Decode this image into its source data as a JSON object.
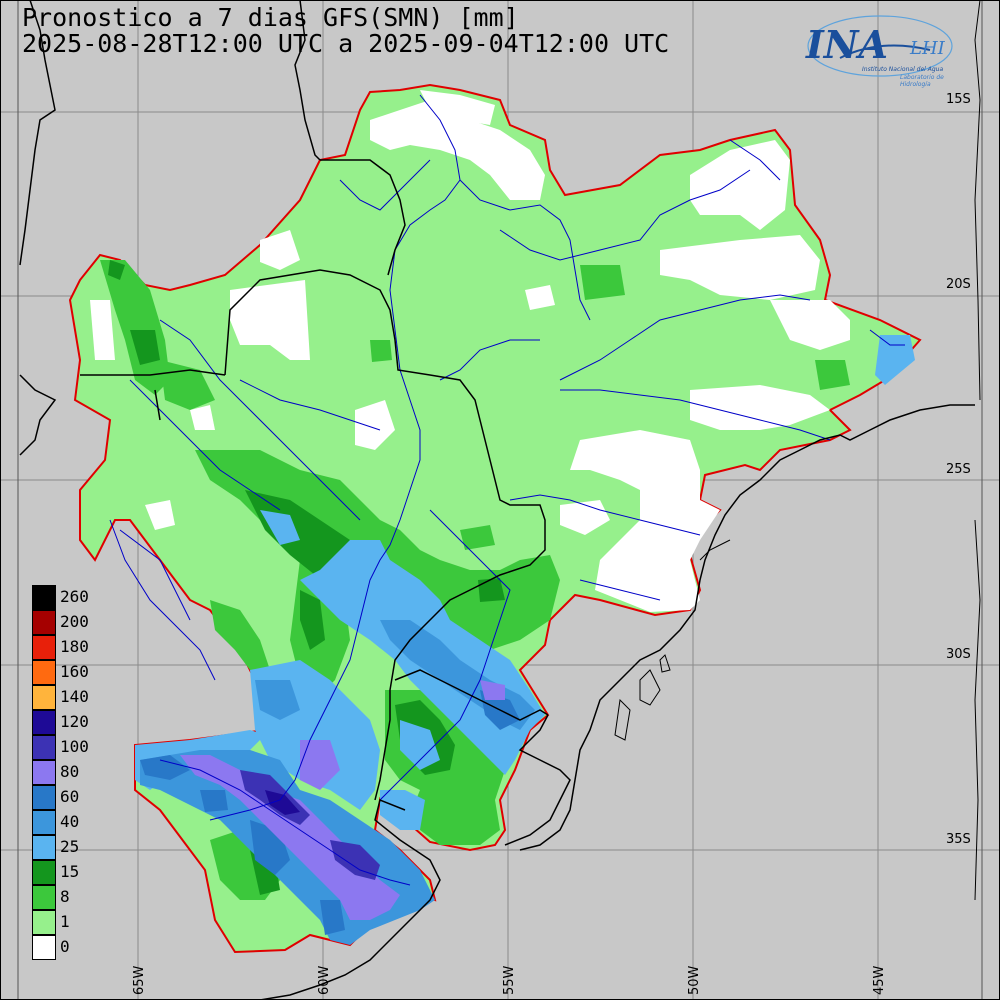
{
  "title": {
    "line1": "Pronostico a 7 dias GFS(SMN) [mm]",
    "line2": "2025-08-28T12:00 UTC a 2025-09-04T12:00 UTC"
  },
  "logo": {
    "ina": "INA",
    "lhi": "LHI",
    "sub1": "Instituto Nacional del Agua",
    "sub2": "Laboratorio de Hidrología"
  },
  "lat_labels": [
    "15S",
    "20S",
    "25S",
    "30S",
    "35S"
  ],
  "lon_labels": [
    "65W",
    "60W",
    "55W",
    "50W",
    "45W"
  ],
  "legend": [
    {
      "label": "260",
      "color": "#000000"
    },
    {
      "label": "200",
      "color": "#a50000"
    },
    {
      "label": "180",
      "color": "#e8200a"
    },
    {
      "label": "160",
      "color": "#ff6a10"
    },
    {
      "label": "140",
      "color": "#ffb43c"
    },
    {
      "label": "120",
      "color": "#1e0a96"
    },
    {
      "label": "100",
      "color": "#3c32b4"
    },
    {
      "label": "80",
      "color": "#8c78f0"
    },
    {
      "label": "60",
      "color": "#2878c8"
    },
    {
      "label": "40",
      "color": "#3c96dc"
    },
    {
      "label": "25",
      "color": "#5ab4f0"
    },
    {
      "label": "15",
      "color": "#14961e"
    },
    {
      "label": "8",
      "color": "#3cc83c"
    },
    {
      "label": "1",
      "color": "#96f08c"
    },
    {
      "label": "0",
      "color": "#ffffff"
    }
  ],
  "colors": {
    "background": "#c8c8c8",
    "basin_outline": "#e00000",
    "rivers": "#0000c8",
    "borders": "#000000",
    "grid": "#808080"
  }
}
